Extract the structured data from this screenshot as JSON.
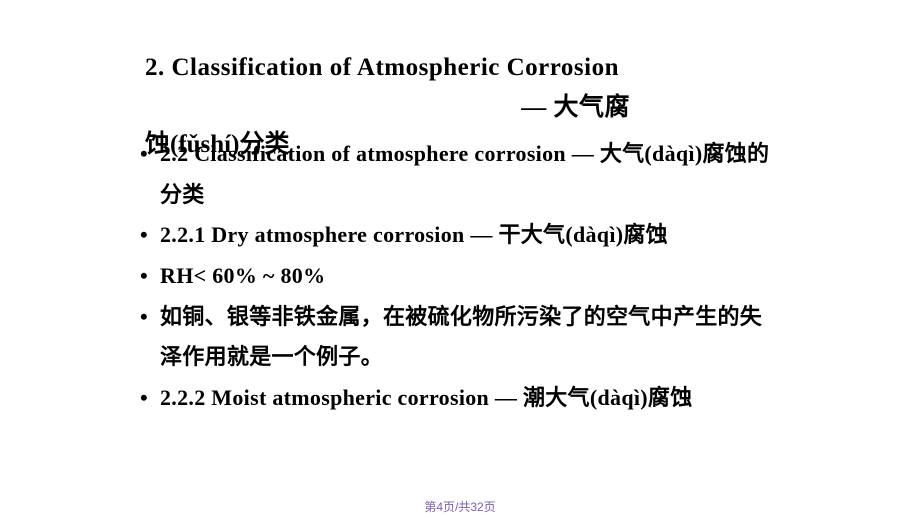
{
  "title": {
    "line1": "2. Classification of Atmospheric Corrosion",
    "line2": "— 大气腐",
    "line3": "蚀(fǔshí)分类"
  },
  "bullets": [
    "2.2 Classification of atmosphere corrosion — 大气(dàqì)腐蚀的分类",
    "2.2.1 Dry atmosphere corrosion — 干大气(dàqì)腐蚀",
    "RH< 60% ~ 80%",
    "如铜、银等非铁金属，在被硫化物所污染了的空气中产生的失泽作用就是一个例子。",
    "2.2.2 Moist atmospheric corrosion — 潮大气(dàqì)腐蚀"
  ],
  "footer": {
    "text": "第4页/共32页"
  },
  "colors": {
    "text": "#000000",
    "footer": "#7b5fb3",
    "background": "#ffffff"
  }
}
